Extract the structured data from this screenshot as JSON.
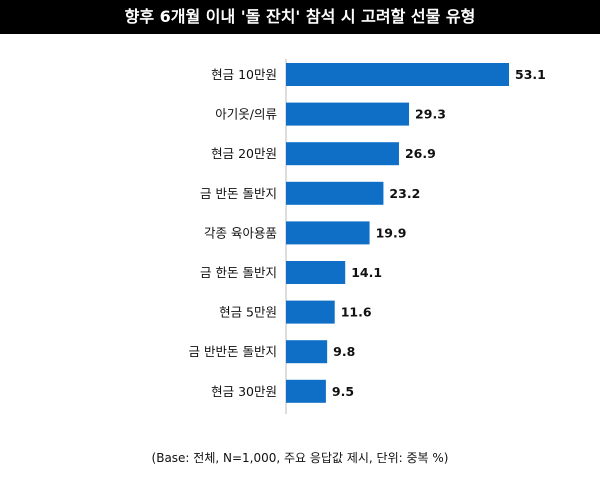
{
  "title": "향후 6개월 이내 '돌 잔치' 참석 시 고려할 선물 유형",
  "footnote": "(Base: 전체, N=1,000, 주요 응답값 제시, 단위: 중복 %)",
  "colors": {
    "bar": "#0F6FC6",
    "title_bg": "#000000"
  },
  "chart_data": {
    "type": "bar",
    "orientation": "horizontal",
    "categories": [
      "현금 10만원",
      "아기옷/의류",
      "현금 20만원",
      "금 반돈 돌반지",
      "각종 육아용품",
      "금 한돈 돌반지",
      "현금 5만원",
      "금 반반돈 돌반지",
      "현금 30만원"
    ],
    "values": [
      53.1,
      29.3,
      26.9,
      23.2,
      19.9,
      14.1,
      11.6,
      9.8,
      9.5
    ],
    "value_labels": [
      "53.1",
      "29.3",
      "26.9",
      "23.2",
      "19.9",
      "14.1",
      "11.6",
      "9.8",
      "9.5"
    ],
    "xlim": [
      0,
      53.1
    ],
    "grid": false,
    "legend": "none"
  }
}
